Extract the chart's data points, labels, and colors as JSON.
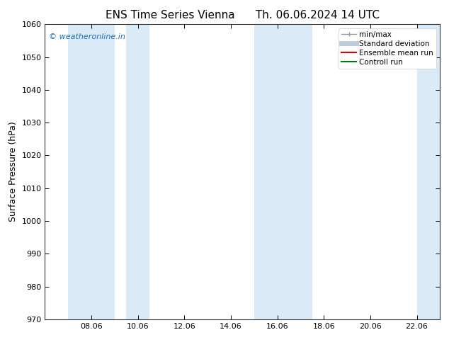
{
  "title": "ENS Time Series Vienna",
  "title2": "Th. 06.06.2024 14 UTC",
  "ylabel": "Surface Pressure (hPa)",
  "ylim": [
    970,
    1060
  ],
  "yticks": [
    970,
    980,
    990,
    1000,
    1010,
    1020,
    1030,
    1040,
    1050,
    1060
  ],
  "xtick_labels": [
    "08.06",
    "10.06",
    "12.06",
    "14.06",
    "16.06",
    "18.06",
    "20.06",
    "22.06"
  ],
  "xlim_dates": [
    6.0,
    23.0
  ],
  "xtick_positions": [
    8.0,
    10.0,
    12.0,
    14.0,
    16.0,
    18.0,
    20.0,
    22.0
  ],
  "shaded_bands": [
    {
      "x_start": 7.0,
      "x_end": 9.0
    },
    {
      "x_start": 9.5,
      "x_end": 10.5
    },
    {
      "x_start": 15.0,
      "x_end": 16.5
    },
    {
      "x_start": 16.5,
      "x_end": 17.5
    },
    {
      "x_start": 22.0,
      "x_end": 23.0
    }
  ],
  "shade_color": "#daeaf7",
  "plot_bg_color": "#f0f4f8",
  "background_color": "#ffffff",
  "watermark_text": "© weatheronline.in",
  "watermark_color": "#1a6ec0",
  "legend_entries": [
    {
      "label": "min/max",
      "color": "#999999",
      "lw": 1.0,
      "ls": "-"
    },
    {
      "label": "Standard deviation",
      "color": "#bbccdd",
      "lw": 5,
      "ls": "-"
    },
    {
      "label": "Ensemble mean run",
      "color": "#dd0000",
      "lw": 1.5,
      "ls": "-"
    },
    {
      "label": "Controll run",
      "color": "#007700",
      "lw": 1.5,
      "ls": "-"
    }
  ],
  "title_fontsize": 11,
  "tick_fontsize": 8,
  "ylabel_fontsize": 9,
  "legend_fontsize": 7.5
}
